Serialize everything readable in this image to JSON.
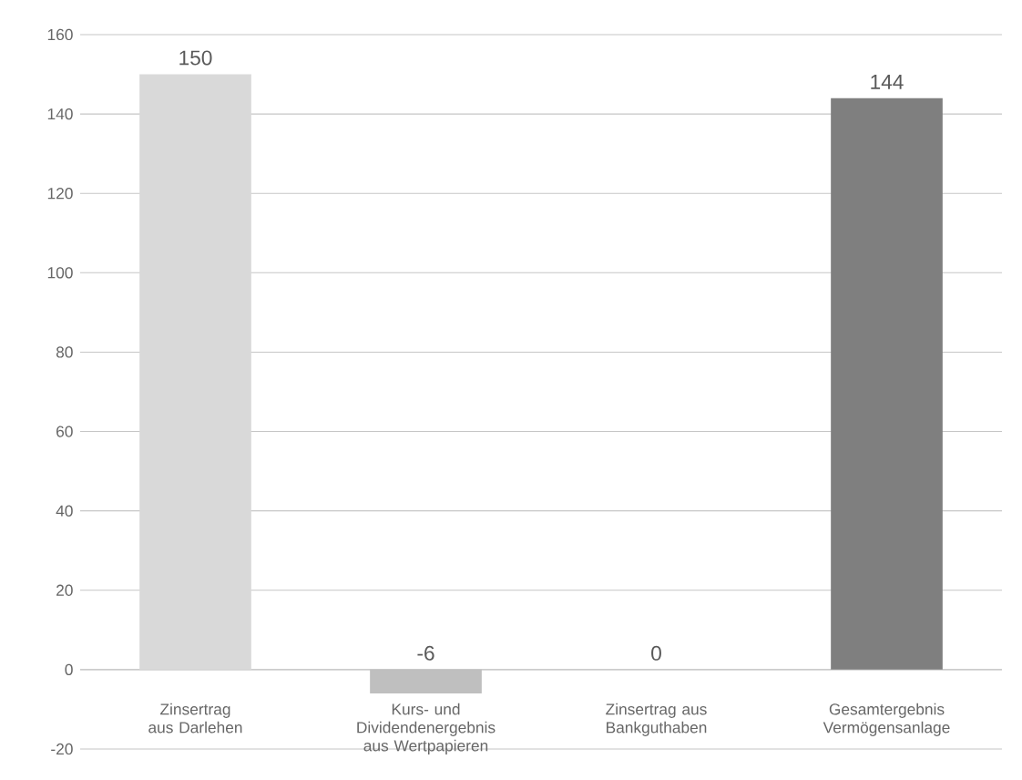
{
  "chart_data": {
    "type": "bar",
    "categories": [
      "Zinsertrag aus Darlehen",
      "Kurs- und Dividendenergebnis aus Wertpapieren",
      "Zinsertrag aus Bankguthaben",
      "Gesamtergebnis Vermögensanlage"
    ],
    "values": [
      150,
      -6,
      0,
      144
    ],
    "colors": [
      "#d9d9d9",
      "#bfbfbf",
      "#a6a6a6",
      "#7f7f7f"
    ],
    "value_labels": [
      "150",
      "-6",
      "0",
      "144"
    ],
    "ylim": [
      -20,
      160
    ],
    "yticks": [
      -20,
      0,
      20,
      40,
      60,
      80,
      100,
      120,
      140,
      160
    ],
    "grid": "y"
  }
}
